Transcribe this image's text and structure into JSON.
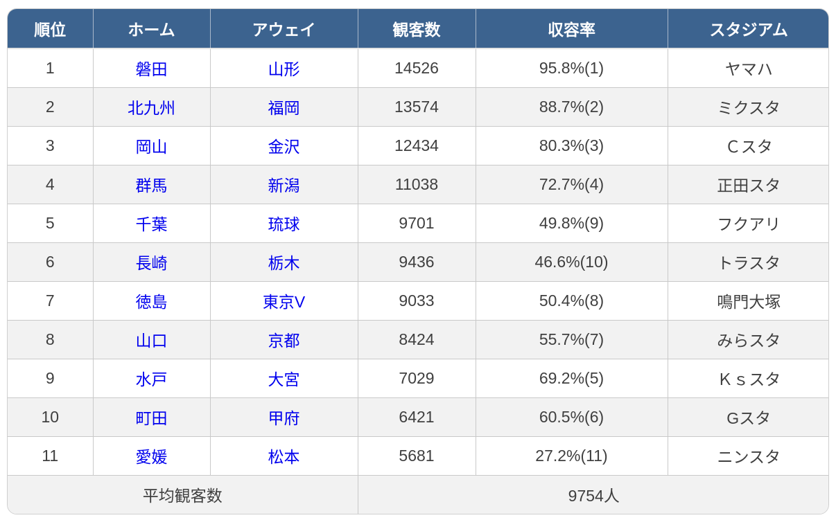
{
  "chart_data": {
    "type": "table",
    "columns": [
      "順位",
      "ホーム",
      "アウェイ",
      "観客数",
      "収容率",
      "スタジアム"
    ],
    "rows": [
      [
        "1",
        "磐田",
        "山形",
        "14526",
        "95.8%(1)",
        "ヤマハ"
      ],
      [
        "2",
        "北九州",
        "福岡",
        "13574",
        "88.7%(2)",
        "ミクスタ"
      ],
      [
        "3",
        "岡山",
        "金沢",
        "12434",
        "80.3%(3)",
        "Ｃスタ"
      ],
      [
        "4",
        "群馬",
        "新潟",
        "11038",
        "72.7%(4)",
        "正田スタ"
      ],
      [
        "5",
        "千葉",
        "琉球",
        "9701",
        "49.8%(9)",
        "フクアリ"
      ],
      [
        "6",
        "長崎",
        "栃木",
        "9436",
        "46.6%(10)",
        "トラスタ"
      ],
      [
        "7",
        "徳島",
        "東京V",
        "9033",
        "50.4%(8)",
        "鳴門大塚"
      ],
      [
        "8",
        "山口",
        "京都",
        "8424",
        "55.7%(7)",
        "みらスタ"
      ],
      [
        "9",
        "水戸",
        "大宮",
        "7029",
        "69.2%(5)",
        "Ｋｓスタ"
      ],
      [
        "10",
        "町田",
        "甲府",
        "6421",
        "60.5%(6)",
        "Gスタ"
      ],
      [
        "11",
        "愛媛",
        "松本",
        "5681",
        "27.2%(11)",
        "ニンスタ"
      ]
    ],
    "footer": {
      "label": "平均観客数",
      "value": "9754人"
    }
  },
  "colors": {
    "header_bg": "#3c638f",
    "header_text": "#ffffff",
    "link_blue": "#0000ee",
    "row_alt_bg": "#f2f2f2",
    "border": "#c9c9c9",
    "body_text": "#3f3f3f"
  }
}
